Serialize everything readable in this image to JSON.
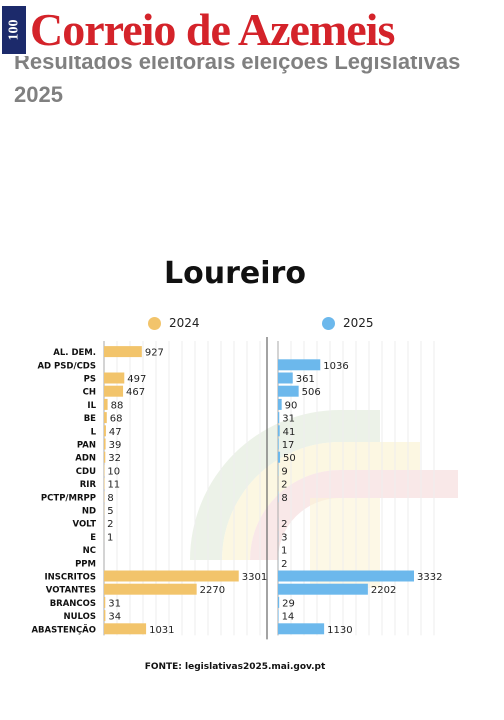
{
  "header": {
    "logo_badge": "100",
    "logo_text": "Correio de Azemeis"
  },
  "article": {
    "title_line1": "Resultados eleitorais eleições Legislativas",
    "title_line2": "2025"
  },
  "chart_data": {
    "type": "bar",
    "title": "Loureiro",
    "orientation": "horizontal",
    "categories": [
      "AL. DEM.",
      "AD PSD/CDS",
      "PS",
      "CH",
      "IL",
      "BE",
      "L",
      "PAN",
      "ADN",
      "CDU",
      "RIR",
      "PCTP/MRPP",
      "ND",
      "VOLT",
      "E",
      "NC",
      "PPM",
      "INSCRITOS",
      "VOTANTES",
      "BRANCOS",
      "NULOS",
      "ABASTENÇÃO"
    ],
    "series": [
      {
        "name": "2024",
        "color": "#f2c46b",
        "values": [
          927,
          null,
          497,
          467,
          88,
          68,
          47,
          39,
          32,
          10,
          11,
          8,
          5,
          2,
          1,
          null,
          null,
          3301,
          2270,
          31,
          34,
          1031
        ]
      },
      {
        "name": "2025",
        "color": "#6cb8ec",
        "values": [
          null,
          1036,
          361,
          506,
          90,
          31,
          41,
          17,
          50,
          9,
          2,
          8,
          null,
          2,
          3,
          1,
          2,
          3332,
          2202,
          29,
          14,
          1130
        ]
      }
    ],
    "legend_position": "top",
    "grid": true,
    "xlim": [
      0,
      3600
    ],
    "source": "FONTE: legislativas2025.mai.gov.pt"
  }
}
